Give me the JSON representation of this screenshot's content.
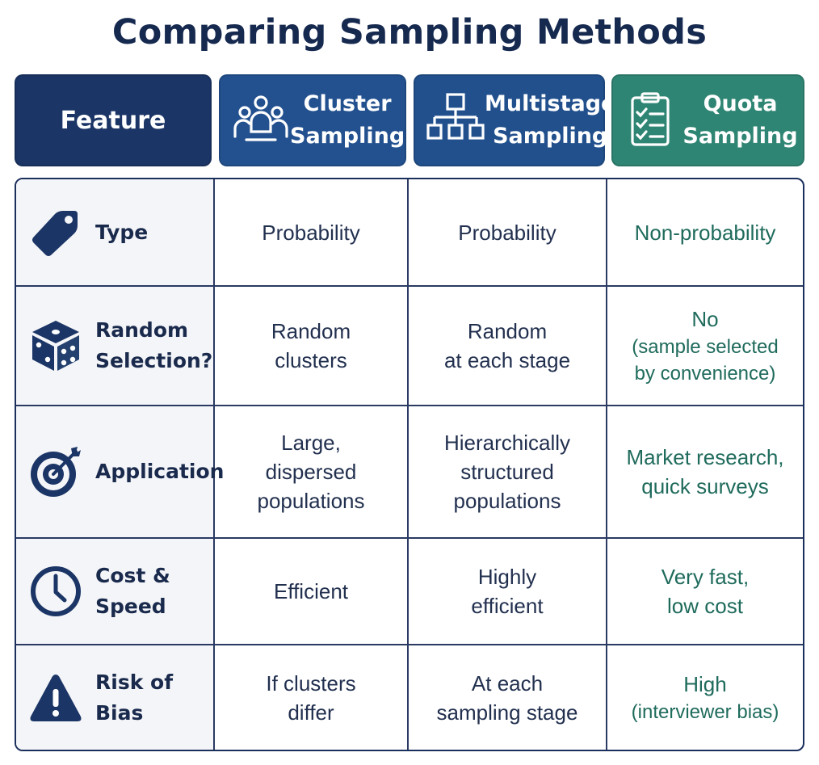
{
  "title": "Comparing Sampling Methods",
  "header": {
    "feature": "Feature",
    "cluster": [
      "Cluster",
      "Sampling"
    ],
    "multistage": [
      "Multistage",
      "Sampling"
    ],
    "quota": [
      "Quota",
      "Sampling"
    ]
  },
  "icons": {
    "cluster": "people-group-icon",
    "multistage": "hierarchy-icon",
    "quota": "checklist-icon"
  },
  "colors": {
    "title": "#16294f",
    "feature_header": "#1b3566",
    "cluster_header": "#23518f",
    "multistage_header": "#21508d",
    "quota_header": "#2f8573",
    "quota_text": "#1f6b5c"
  },
  "rows": [
    {
      "icon": "tag-icon",
      "feature": [
        "Type"
      ],
      "cluster": [
        "Probability"
      ],
      "multistage": [
        "Probability"
      ],
      "quota": [
        "Non-probability"
      ]
    },
    {
      "icon": "dice-icon",
      "feature": [
        "Random",
        "Selection?"
      ],
      "cluster": [
        "Random",
        "clusters"
      ],
      "multistage": [
        "Random",
        "at each stage"
      ],
      "quota": [
        "No",
        "(sample selected",
        "by convenience)"
      ]
    },
    {
      "icon": "target-icon",
      "feature": [
        "Application"
      ],
      "cluster": [
        "Large,",
        "dispersed",
        "populations"
      ],
      "multistage": [
        "Hierarchically",
        "structured",
        "populations"
      ],
      "quota": [
        "Market research,",
        "quick surveys"
      ]
    },
    {
      "icon": "clock-icon",
      "feature": [
        "Cost & Speed"
      ],
      "cluster": [
        "Efficient"
      ],
      "multistage": [
        "Highly",
        "efficient"
      ],
      "quota": [
        "Very fast,",
        "low cost"
      ]
    },
    {
      "icon": "warning-icon",
      "feature": [
        "Risk of Bias"
      ],
      "cluster": [
        "If clusters",
        "differ"
      ],
      "multistage": [
        "At each",
        "sampling stage"
      ],
      "quota": [
        "High",
        "(interviewer bias)"
      ]
    }
  ]
}
